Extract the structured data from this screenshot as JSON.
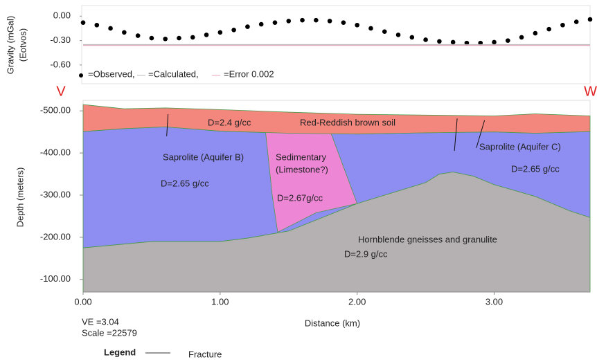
{
  "chart_data": [
    {
      "type": "scatter",
      "ylabel": "Gravity (mGal)",
      "ylabel2": "(Eotvos)",
      "left_marker": "V",
      "right_marker": "W",
      "xlim": [
        0,
        3.7
      ],
      "ylim": [
        -0.83,
        0.13
      ],
      "yticks": [
        {
          "value": 0,
          "label": "0.00"
        },
        {
          "value": -0.3,
          "label": "-0.30"
        },
        {
          "value": -0.6,
          "label": "-0.60"
        }
      ],
      "series": [
        {
          "name": "=Observed,",
          "color": "#000000",
          "x": [
            0.0,
            0.1,
            0.2,
            0.3,
            0.4,
            0.5,
            0.6,
            0.7,
            0.8,
            0.9,
            1.0,
            1.1,
            1.2,
            1.3,
            1.4,
            1.5,
            1.6,
            1.7,
            1.8,
            1.9,
            2.0,
            2.1,
            2.2,
            2.3,
            2.4,
            2.5,
            2.6,
            2.7,
            2.8,
            2.9,
            3.0,
            3.1,
            3.2,
            3.3,
            3.4,
            3.5,
            3.6,
            3.7
          ],
          "values": [
            -0.08,
            -0.11,
            -0.15,
            -0.2,
            -0.24,
            -0.27,
            -0.28,
            -0.27,
            -0.26,
            -0.23,
            -0.2,
            -0.17,
            -0.13,
            -0.1,
            -0.08,
            -0.06,
            -0.05,
            -0.05,
            -0.06,
            -0.08,
            -0.11,
            -0.15,
            -0.19,
            -0.23,
            -0.26,
            -0.29,
            -0.31,
            -0.32,
            -0.33,
            -0.33,
            -0.32,
            -0.3,
            -0.26,
            -0.21,
            -0.16,
            -0.11,
            -0.07,
            -0.04
          ]
        },
        {
          "name": "=Calculated,",
          "color": "#bbbbbb",
          "x": [
            0,
            3.7
          ],
          "values": [
            -0.35,
            -0.35
          ]
        },
        {
          "name": "=Error 0.002",
          "color": "#e8a0b8",
          "x": [
            0,
            3.7
          ],
          "values": [
            -0.36,
            -0.36
          ]
        }
      ]
    },
    {
      "type": "section",
      "xlabel": "Distance (km)",
      "ylabel": "Depth (meters)",
      "xlim": [
        0,
        3.7
      ],
      "ylim": [
        -525,
        -70
      ],
      "xticks": [
        {
          "value": 0,
          "label": "0.00"
        },
        {
          "value": 1,
          "label": "1.00"
        },
        {
          "value": 2,
          "label": "2.00"
        },
        {
          "value": 3,
          "label": "3.00"
        }
      ],
      "yticks": [
        {
          "value": -500,
          "label": "-500.00"
        },
        {
          "value": -400,
          "label": "-400.00"
        },
        {
          "value": -300,
          "label": "-300.00"
        },
        {
          "value": -200,
          "label": "-200.00"
        },
        {
          "value": -100,
          "label": "-100.00"
        }
      ],
      "layers": [
        {
          "color": "#b5b0b2",
          "top": {
            "x": [
              0,
              0.5,
              1.0,
              1.2,
              1.5,
              2.0,
              2.5,
              2.6,
              2.7,
              2.85,
              3.0,
              3.3,
              3.55,
              3.7
            ],
            "depth": [
              -175,
              -190,
              -190,
              -198,
              -215,
              -280,
              -330,
              -350,
              -355,
              -345,
              -325,
              -297,
              -263,
              -247
            ]
          },
          "bottom": {
            "x": [
              0,
              3.7
            ],
            "depth": [
              -70,
              -70
            ]
          }
        },
        {
          "color": "#8d8df2",
          "top": {
            "x": [
              0,
              0.3,
              0.6,
              1.0,
              1.5,
              2.0,
              2.5,
              3.0,
              3.3,
              3.7
            ],
            "depth": [
              -451,
              -458,
              -462,
              -452,
              -447,
              -445,
              -448,
              -450,
              -447,
              -451
            ]
          },
          "bottom": {
            "x": [
              0,
              0.5,
              1.0,
              1.2,
              1.5,
              2.0,
              2.5,
              2.6,
              2.7,
              2.85,
              3.0,
              3.3,
              3.55,
              3.7
            ],
            "depth": [
              -175,
              -190,
              -190,
              -198,
              -215,
              -280,
              -330,
              -350,
              -355,
              -345,
              -325,
              -297,
              -263,
              -247
            ]
          }
        },
        {
          "color": "#ee86d6",
          "outline": {
            "x": [
              1.33,
              1.5,
              1.8,
              2.0,
              1.7,
              1.42,
              1.38
            ],
            "depth": [
              -455,
              -468,
              -455,
              -280,
              -258,
              -212,
              -300
            ]
          }
        },
        {
          "color": "#f3877e",
          "top": {
            "x": [
              0,
              0.3,
              0.6,
              1.0,
              1.5,
              2.0,
              2.5,
              3.0,
              3.3,
              3.7
            ],
            "depth": [
              -515,
              -505,
              -507,
              -503,
              -497,
              -492,
              -490,
              -488,
              -493,
              -488
            ]
          },
          "bottom": {
            "x": [
              0,
              0.3,
              0.6,
              1.0,
              1.5,
              2.0,
              2.5,
              3.0,
              3.3,
              3.7
            ],
            "depth": [
              -451,
              -458,
              -462,
              -452,
              -447,
              -445,
              -448,
              -450,
              -447,
              -451
            ]
          }
        }
      ],
      "fractures": [
        {
          "x": [
            0.62,
            0.61
          ],
          "depth": [
            -492,
            -440
          ]
        },
        {
          "x": [
            2.73,
            2.71
          ],
          "depth": [
            -482,
            -405
          ]
        },
        {
          "x": [
            2.93,
            2.87
          ],
          "depth": [
            -478,
            -412
          ]
        }
      ],
      "annotations": [
        "D=2.4 g/cc",
        "Red-Reddish brown soil",
        "Saprolite (Aquifer B)",
        "D=2.65 g/cc",
        "Sedimentary",
        "(Limestone?)",
        "D=2.67g/cc",
        "Saprolite (Aquifer C)",
        "D=2.65 g/cc",
        "Hornblende gneisses and granulite",
        "D=2.9 g/cc"
      ],
      "ve": "VE =3.04",
      "scale": "Scale =22579",
      "legend_title": "Legend",
      "legend_item": "Fracture"
    }
  ]
}
